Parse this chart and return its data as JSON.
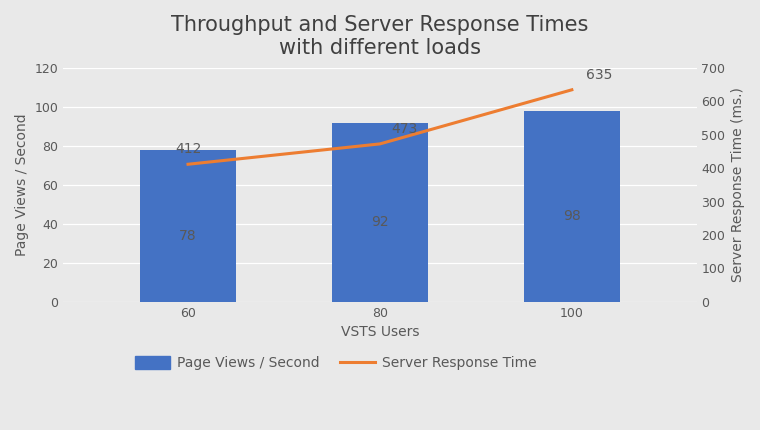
{
  "title": "Throughput and Server Response Times\nwith different loads",
  "xlabel": "VSTS Users",
  "ylabel_left": "Page Views / Second",
  "ylabel_right": "Server Response Time (ms.)",
  "x_categories": [
    60,
    80,
    100
  ],
  "bar_values": [
    78,
    92,
    98
  ],
  "line_values": [
    412,
    473,
    635
  ],
  "bar_color": "#4472C4",
  "line_color": "#ED7D31",
  "bar_label": "Page Views / Second",
  "line_label": "Server Response Time",
  "ylim_left": [
    0,
    120
  ],
  "ylim_right": [
    0,
    700
  ],
  "yticks_left": [
    0,
    20,
    40,
    60,
    80,
    100,
    120
  ],
  "yticks_right": [
    0,
    100,
    200,
    300,
    400,
    500,
    600,
    700
  ],
  "background_color": "#E9E9E9",
  "plot_bg_color": "#E9E9E9",
  "bar_width": 0.5,
  "title_fontsize": 15,
  "label_fontsize": 10,
  "tick_fontsize": 9,
  "annotation_fontsize": 10,
  "legend_fontsize": 10,
  "line_width": 2.2,
  "bar_text_color": "#595959",
  "annot_line_offsets": [
    [
      0,
      8
    ],
    [
      8,
      8
    ],
    [
      10,
      8
    ]
  ],
  "annot_line_ha": [
    "center",
    "left",
    "left"
  ]
}
